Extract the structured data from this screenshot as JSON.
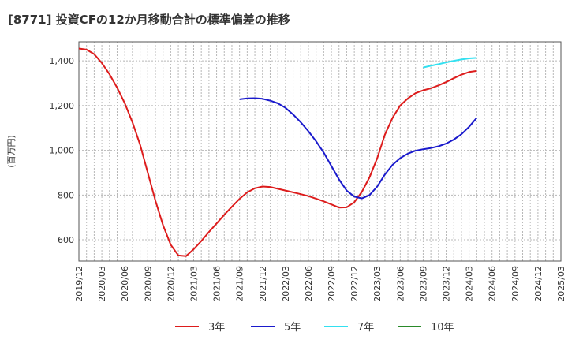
{
  "chart_data": {
    "type": "line",
    "title": "[8771]  投資CFの12か月移動合計の標準偏差の推移",
    "ylabel": "(百万円)",
    "xlabel": "",
    "x_ticks": [
      "2019/12",
      "2020/03",
      "2020/06",
      "2020/09",
      "2020/12",
      "2021/03",
      "2021/06",
      "2021/09",
      "2021/12",
      "2022/03",
      "2022/06",
      "2022/09",
      "2022/12",
      "2023/03",
      "2023/06",
      "2023/09",
      "2023/12",
      "2024/03",
      "2024/06",
      "2024/09",
      "2024/12",
      "2025/03"
    ],
    "y_ticks": [
      600,
      800,
      1000,
      1200,
      1400
    ],
    "ylim": [
      505,
      1485
    ],
    "grid": true,
    "legend_position": "bottom",
    "series": [
      {
        "name": "3年",
        "color": "#dd1c1c",
        "points": [
          [
            "2019/12",
            1455
          ],
          [
            "2020/01",
            1450
          ],
          [
            "2020/02",
            1430
          ],
          [
            "2020/03",
            1390
          ],
          [
            "2020/04",
            1340
          ],
          [
            "2020/05",
            1280
          ],
          [
            "2020/06",
            1210
          ],
          [
            "2020/07",
            1125
          ],
          [
            "2020/08",
            1025
          ],
          [
            "2020/09",
            900
          ],
          [
            "2020/10",
            775
          ],
          [
            "2020/11",
            665
          ],
          [
            "2020/12",
            578
          ],
          [
            "2021/01",
            530
          ],
          [
            "2021/02",
            527
          ],
          [
            "2021/03",
            558
          ],
          [
            "2021/04",
            595
          ],
          [
            "2021/05",
            635
          ],
          [
            "2021/06",
            673
          ],
          [
            "2021/07",
            712
          ],
          [
            "2021/08",
            748
          ],
          [
            "2021/09",
            783
          ],
          [
            "2021/10",
            812
          ],
          [
            "2021/11",
            830
          ],
          [
            "2021/12",
            838
          ],
          [
            "2022/01",
            836
          ],
          [
            "2022/02",
            828
          ],
          [
            "2022/03",
            820
          ],
          [
            "2022/04",
            812
          ],
          [
            "2022/05",
            804
          ],
          [
            "2022/06",
            795
          ],
          [
            "2022/07",
            784
          ],
          [
            "2022/08",
            772
          ],
          [
            "2022/09",
            758
          ],
          [
            "2022/10",
            744
          ],
          [
            "2022/11",
            745
          ],
          [
            "2022/12",
            768
          ],
          [
            "2023/01",
            815
          ],
          [
            "2023/02",
            880
          ],
          [
            "2023/03",
            965
          ],
          [
            "2023/04",
            1070
          ],
          [
            "2023/05",
            1145
          ],
          [
            "2023/06",
            1200
          ],
          [
            "2023/07",
            1232
          ],
          [
            "2023/08",
            1255
          ],
          [
            "2023/09",
            1268
          ],
          [
            "2023/10",
            1277
          ],
          [
            "2023/11",
            1290
          ],
          [
            "2023/12",
            1305
          ],
          [
            "2024/01",
            1322
          ],
          [
            "2024/02",
            1338
          ],
          [
            "2024/03",
            1350
          ],
          [
            "2024/04",
            1355
          ]
        ]
      },
      {
        "name": "5年",
        "color": "#1a1acc",
        "points": [
          [
            "2021/09",
            1228
          ],
          [
            "2021/10",
            1232
          ],
          [
            "2021/11",
            1233
          ],
          [
            "2021/12",
            1230
          ],
          [
            "2022/01",
            1222
          ],
          [
            "2022/02",
            1210
          ],
          [
            "2022/03",
            1190
          ],
          [
            "2022/04",
            1160
          ],
          [
            "2022/05",
            1125
          ],
          [
            "2022/06",
            1085
          ],
          [
            "2022/07",
            1040
          ],
          [
            "2022/08",
            990
          ],
          [
            "2022/09",
            930
          ],
          [
            "2022/10",
            870
          ],
          [
            "2022/11",
            820
          ],
          [
            "2022/12",
            793
          ],
          [
            "2023/01",
            785
          ],
          [
            "2023/02",
            800
          ],
          [
            "2023/03",
            838
          ],
          [
            "2023/04",
            892
          ],
          [
            "2023/05",
            935
          ],
          [
            "2023/06",
            965
          ],
          [
            "2023/07",
            985
          ],
          [
            "2023/08",
            998
          ],
          [
            "2023/09",
            1005
          ],
          [
            "2023/10",
            1010
          ],
          [
            "2023/11",
            1018
          ],
          [
            "2023/12",
            1030
          ],
          [
            "2024/01",
            1048
          ],
          [
            "2024/02",
            1072
          ],
          [
            "2024/03",
            1105
          ],
          [
            "2024/04",
            1145
          ]
        ]
      },
      {
        "name": "7年",
        "color": "#33e0f0",
        "points": [
          [
            "2023/09",
            1370
          ],
          [
            "2023/10",
            1378
          ],
          [
            "2023/11",
            1385
          ],
          [
            "2023/12",
            1393
          ],
          [
            "2024/01",
            1400
          ],
          [
            "2024/02",
            1406
          ],
          [
            "2024/03",
            1411
          ],
          [
            "2024/04",
            1413
          ]
        ]
      },
      {
        "name": "10年",
        "color": "#2a8a2a",
        "points": []
      }
    ]
  }
}
